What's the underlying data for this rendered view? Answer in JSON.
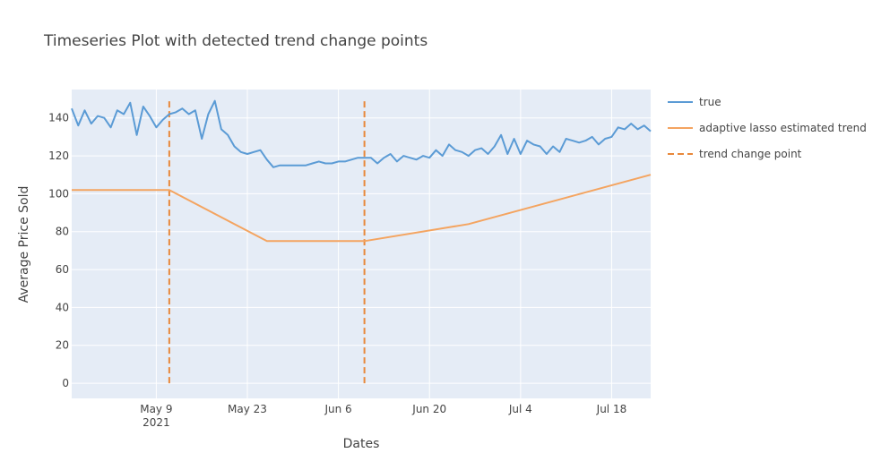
{
  "chart_data": {
    "type": "line",
    "title": "Timeseries Plot with detected trend change points",
    "xlabel": "Dates",
    "ylabel": "Average Price Sold",
    "x_range": [
      "2021-04-26",
      "2021-07-24"
    ],
    "ylim": [
      -8,
      155
    ],
    "x_ticks": [
      {
        "date": "2021-05-09",
        "label": "May 9",
        "sublabel": "2021"
      },
      {
        "date": "2021-05-23",
        "label": "May 23"
      },
      {
        "date": "2021-06-06",
        "label": "Jun 6"
      },
      {
        "date": "2021-06-20",
        "label": "Jun 20"
      },
      {
        "date": "2021-07-04",
        "label": "Jul 4"
      },
      {
        "date": "2021-07-18",
        "label": "Jul 18"
      }
    ],
    "y_ticks": [
      0,
      20,
      40,
      60,
      80,
      100,
      120,
      140
    ],
    "grid": true,
    "legend_position": "right",
    "series": [
      {
        "name": "true",
        "color": "#5b9bd5",
        "x_start": "2021-04-26",
        "step_days": 1,
        "values": [
          145,
          136,
          144,
          137,
          141,
          140,
          135,
          144,
          142,
          148,
          131,
          146,
          141,
          135,
          139,
          142,
          143,
          145,
          142,
          144,
          129,
          142,
          149,
          134,
          131,
          125,
          122,
          121,
          122,
          123,
          118,
          114,
          115,
          115,
          115,
          115,
          115,
          116,
          117,
          116,
          116,
          117,
          117,
          118,
          119,
          119,
          119,
          116,
          119,
          121,
          117,
          120,
          119,
          118,
          120,
          119,
          123,
          120,
          126,
          123,
          122,
          120,
          123,
          124,
          121,
          125,
          131,
          121,
          129,
          121,
          128,
          126,
          125,
          121,
          125,
          122,
          129,
          128,
          127,
          128,
          130,
          126,
          129,
          130,
          135,
          134,
          137,
          134,
          136,
          133
        ]
      },
      {
        "name": "adaptive lasso estimated trend",
        "color": "#f4a460",
        "x": [
          "2021-04-26",
          "2021-05-11",
          "2021-05-26",
          "2021-06-10",
          "2021-06-26",
          "2021-07-24"
        ],
        "values": [
          102,
          102,
          75,
          75,
          84,
          110
        ]
      }
    ],
    "change_points": {
      "name": "trend change point",
      "color": "#e8883a",
      "dates": [
        "2021-05-11",
        "2021-06-10"
      ],
      "y_range": [
        0,
        150
      ]
    }
  }
}
